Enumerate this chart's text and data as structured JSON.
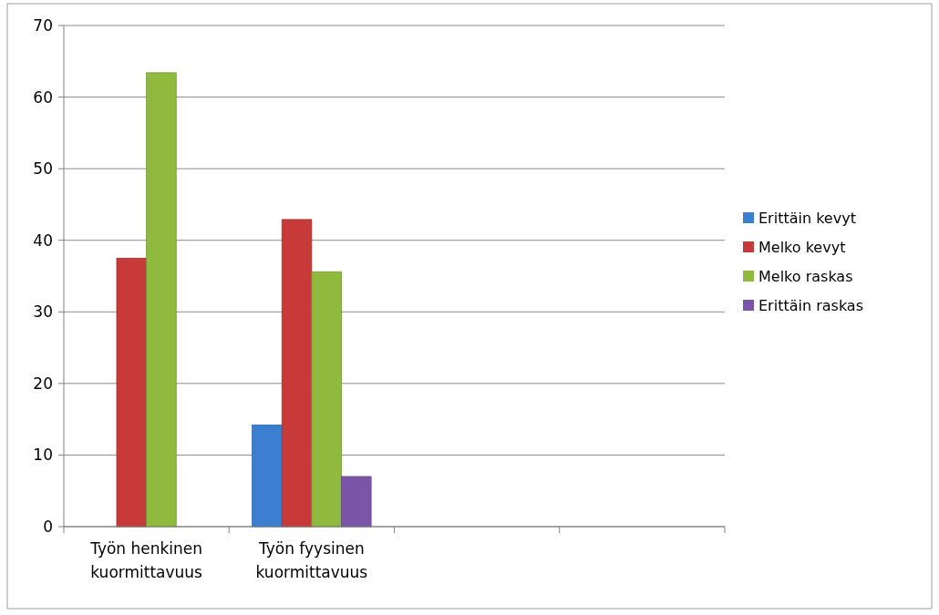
{
  "chart_data": {
    "type": "bar",
    "categories": [
      "Työn henkinen kuormittavuus",
      "Työn fyysinen kuormittavuus",
      null,
      null
    ],
    "series": [
      {
        "name": "Erittäin kevyt",
        "color": "#3c7fd0",
        "values": [
          null,
          14.2,
          null,
          null
        ]
      },
      {
        "name": "Melko kevyt",
        "color": "#c83a3a",
        "values": [
          37.5,
          42.9,
          null,
          null
        ]
      },
      {
        "name": "Melko raskas",
        "color": "#8fba3e",
        "values": [
          63.4,
          35.6,
          null,
          null
        ]
      },
      {
        "name": "Erittäin raskas",
        "color": "#7b55a8",
        "values": [
          null,
          7.0,
          null,
          null
        ]
      }
    ],
    "ylim": [
      0,
      70
    ],
    "yticks": [
      0,
      10,
      20,
      30,
      40,
      50,
      60,
      70
    ],
    "grid": "y",
    "legend": "right"
  }
}
